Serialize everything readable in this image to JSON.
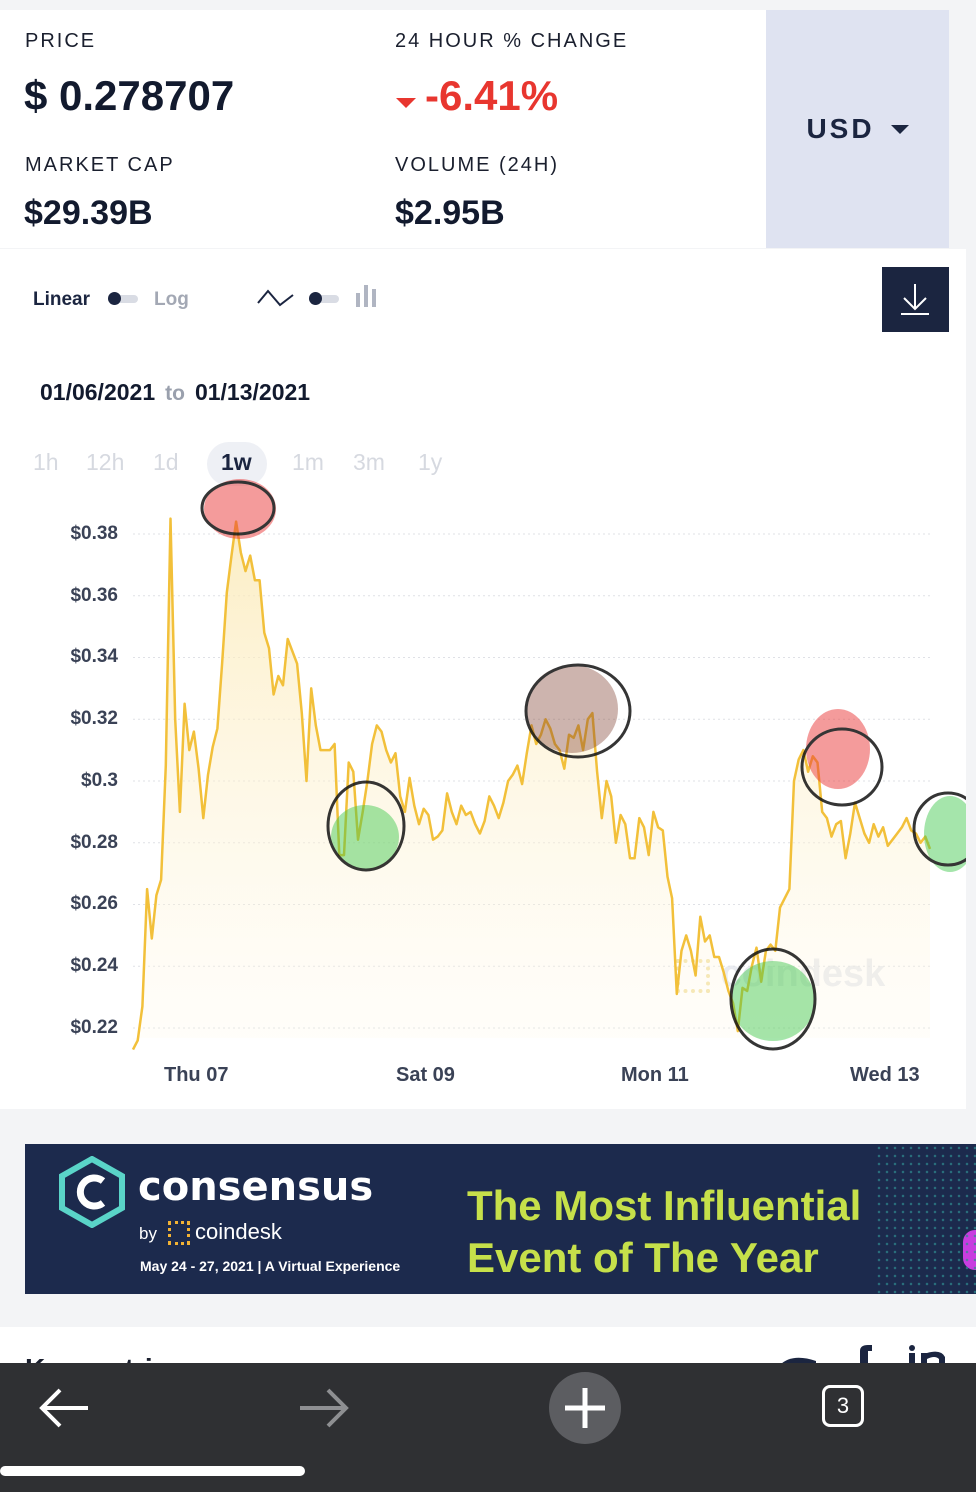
{
  "stats": {
    "price_label": "PRICE",
    "price_value": "$ 0.278707",
    "change_label": "24 HOUR % CHANGE",
    "change_value": "-6.41%",
    "mcap_label": "MARKET CAP",
    "mcap_value": "$29.39B",
    "volume_label": "VOLUME (24H)",
    "volume_value": "$2.95B"
  },
  "currency": {
    "selected": "USD"
  },
  "controls": {
    "linear_label": "Linear",
    "log_label": "Log",
    "scale_mode": "linear",
    "chart_style": "line"
  },
  "daterange": {
    "from": "01/06/2021",
    "to_word": "to",
    "to": "01/13/2021"
  },
  "ranges": [
    "1h",
    "12h",
    "1d",
    "1w",
    "1m",
    "3m",
    "1y"
  ],
  "active_range": "1w",
  "watermark": "coindesk",
  "colors": {
    "line": "#f2c03a",
    "negative": "#e8362f",
    "navy": "#1b2540",
    "ad_accent": "#c6e04a"
  },
  "chart_data": {
    "type": "line",
    "yticks": [
      "$0.38",
      "$0.36",
      "$0.34",
      "$0.32",
      "$0.3",
      "$0.28",
      "$0.26",
      "$0.24",
      "$0.22"
    ],
    "ytick_values": [
      0.38,
      0.36,
      0.34,
      0.32,
      0.3,
      0.28,
      0.26,
      0.24,
      0.22
    ],
    "xticks": [
      "Thu 07",
      "Sat 09",
      "Mon 11",
      "Wed 13"
    ],
    "ylim": [
      0.213,
      0.385
    ],
    "xlim": [
      0,
      168
    ],
    "grid": true,
    "legend": "none",
    "values": [
      0.213,
      0.216,
      0.227,
      0.265,
      0.249,
      0.263,
      0.268,
      0.305,
      0.385,
      0.32,
      0.29,
      0.325,
      0.31,
      0.316,
      0.304,
      0.288,
      0.302,
      0.311,
      0.317,
      0.338,
      0.361,
      0.373,
      0.384,
      0.374,
      0.368,
      0.373,
      0.365,
      0.365,
      0.348,
      0.343,
      0.328,
      0.334,
      0.331,
      0.346,
      0.342,
      0.338,
      0.322,
      0.3,
      0.33,
      0.318,
      0.31,
      0.31,
      0.31,
      0.312,
      0.276,
      0.276,
      0.306,
      0.303,
      0.281,
      0.29,
      0.3,
      0.312,
      0.318,
      0.316,
      0.31,
      0.306,
      0.309,
      0.295,
      0.29,
      0.301,
      0.292,
      0.286,
      0.291,
      0.289,
      0.281,
      0.282,
      0.284,
      0.296,
      0.29,
      0.286,
      0.292,
      0.289,
      0.29,
      0.286,
      0.283,
      0.287,
      0.295,
      0.292,
      0.288,
      0.293,
      0.3,
      0.302,
      0.305,
      0.299,
      0.309,
      0.318,
      0.312,
      0.315,
      0.32,
      0.317,
      0.312,
      0.31,
      0.304,
      0.315,
      0.314,
      0.318,
      0.31,
      0.32,
      0.322,
      0.303,
      0.288,
      0.3,
      0.295,
      0.28,
      0.289,
      0.286,
      0.275,
      0.275,
      0.288,
      0.285,
      0.276,
      0.29,
      0.285,
      0.284,
      0.269,
      0.262,
      0.231,
      0.245,
      0.25,
      0.245,
      0.237,
      0.256,
      0.248,
      0.25,
      0.243,
      0.243,
      0.238,
      0.232,
      0.228,
      0.219,
      0.233,
      0.232,
      0.24,
      0.246,
      0.235,
      0.245,
      0.247,
      0.245,
      0.259,
      0.262,
      0.265,
      0.3,
      0.307,
      0.31,
      0.303,
      0.308,
      0.306,
      0.29,
      0.288,
      0.282,
      0.286,
      0.287,
      0.275,
      0.283,
      0.293,
      0.288,
      0.283,
      0.28,
      0.286,
      0.282,
      0.285,
      0.279,
      0.281,
      0.283,
      0.285,
      0.288,
      0.284,
      0.283,
      0.28,
      0.282,
      0.278
    ]
  },
  "ad": {
    "brand": "consensus",
    "by": "by",
    "sponsor": "coindesk",
    "dates": "May 24 - 27, 2021 | A Virtual Experience",
    "headline_1": "The Most Influential",
    "headline_2": "Event of The Year"
  },
  "key_metrics": {
    "title": "Key metrics"
  },
  "browser": {
    "tab_count": "3"
  }
}
